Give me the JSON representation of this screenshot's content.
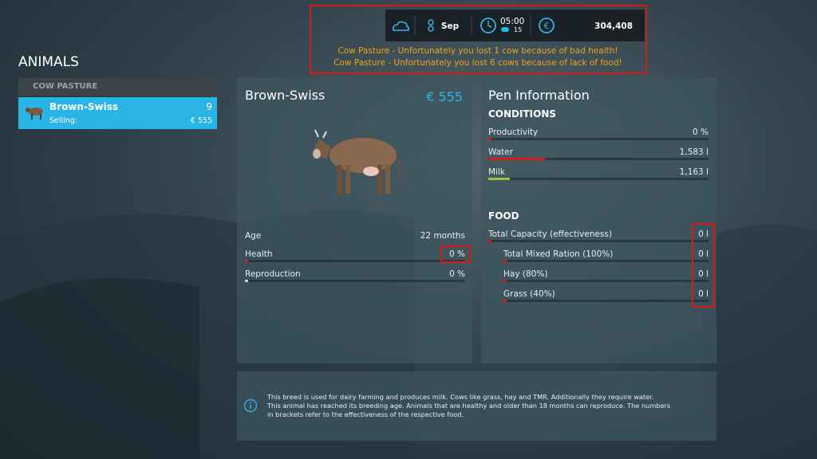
{
  "hud": {
    "month": "Sep",
    "time": "05:00",
    "speed": "15",
    "money": "304,408"
  },
  "notifications": [
    "Cow Pasture - Unfortunately you lost 1 cow because of bad health!",
    "Cow Pasture - Unfortunately you lost 6 cows because of lack of food!"
  ],
  "sidebar": {
    "title": "ANIMALS",
    "group": "COW PASTURE",
    "item": {
      "name": "Brown-Swiss",
      "count": "9",
      "selling_label": "Selling:",
      "selling_price": "€ 555"
    }
  },
  "animal": {
    "name": "Brown-Swiss",
    "price": "€ 555",
    "rows": [
      [
        "Age",
        "22 months"
      ],
      [
        "Health",
        "0 %"
      ],
      [
        "Reproduction",
        "0 %"
      ]
    ]
  },
  "pen": {
    "title": "Pen Information",
    "conditions_title": "CONDITIONS",
    "conditions": [
      [
        "Productivity",
        "0 %"
      ],
      [
        "Water",
        "1,583 l"
      ],
      [
        "Milk",
        "1,163 l"
      ]
    ],
    "food_title": "FOOD",
    "food": [
      [
        "Total Capacity (effectiveness)",
        "0 l"
      ],
      [
        "Total Mixed Ration (100%)",
        "0 l"
      ],
      [
        "Hay (80%)",
        "0 l"
      ],
      [
        "Grass (40%)",
        "0 l"
      ]
    ]
  },
  "info": [
    "This breed is used for dairy farming and produces milk. Cows like grass, hay and TMR. Additionally they require water.",
    "This animal has reached its breeding age. Animals that are healthy and older than 18 months can reproduce. The numbers",
    "in brackets refer to the effectiveness of the respective food."
  ]
}
